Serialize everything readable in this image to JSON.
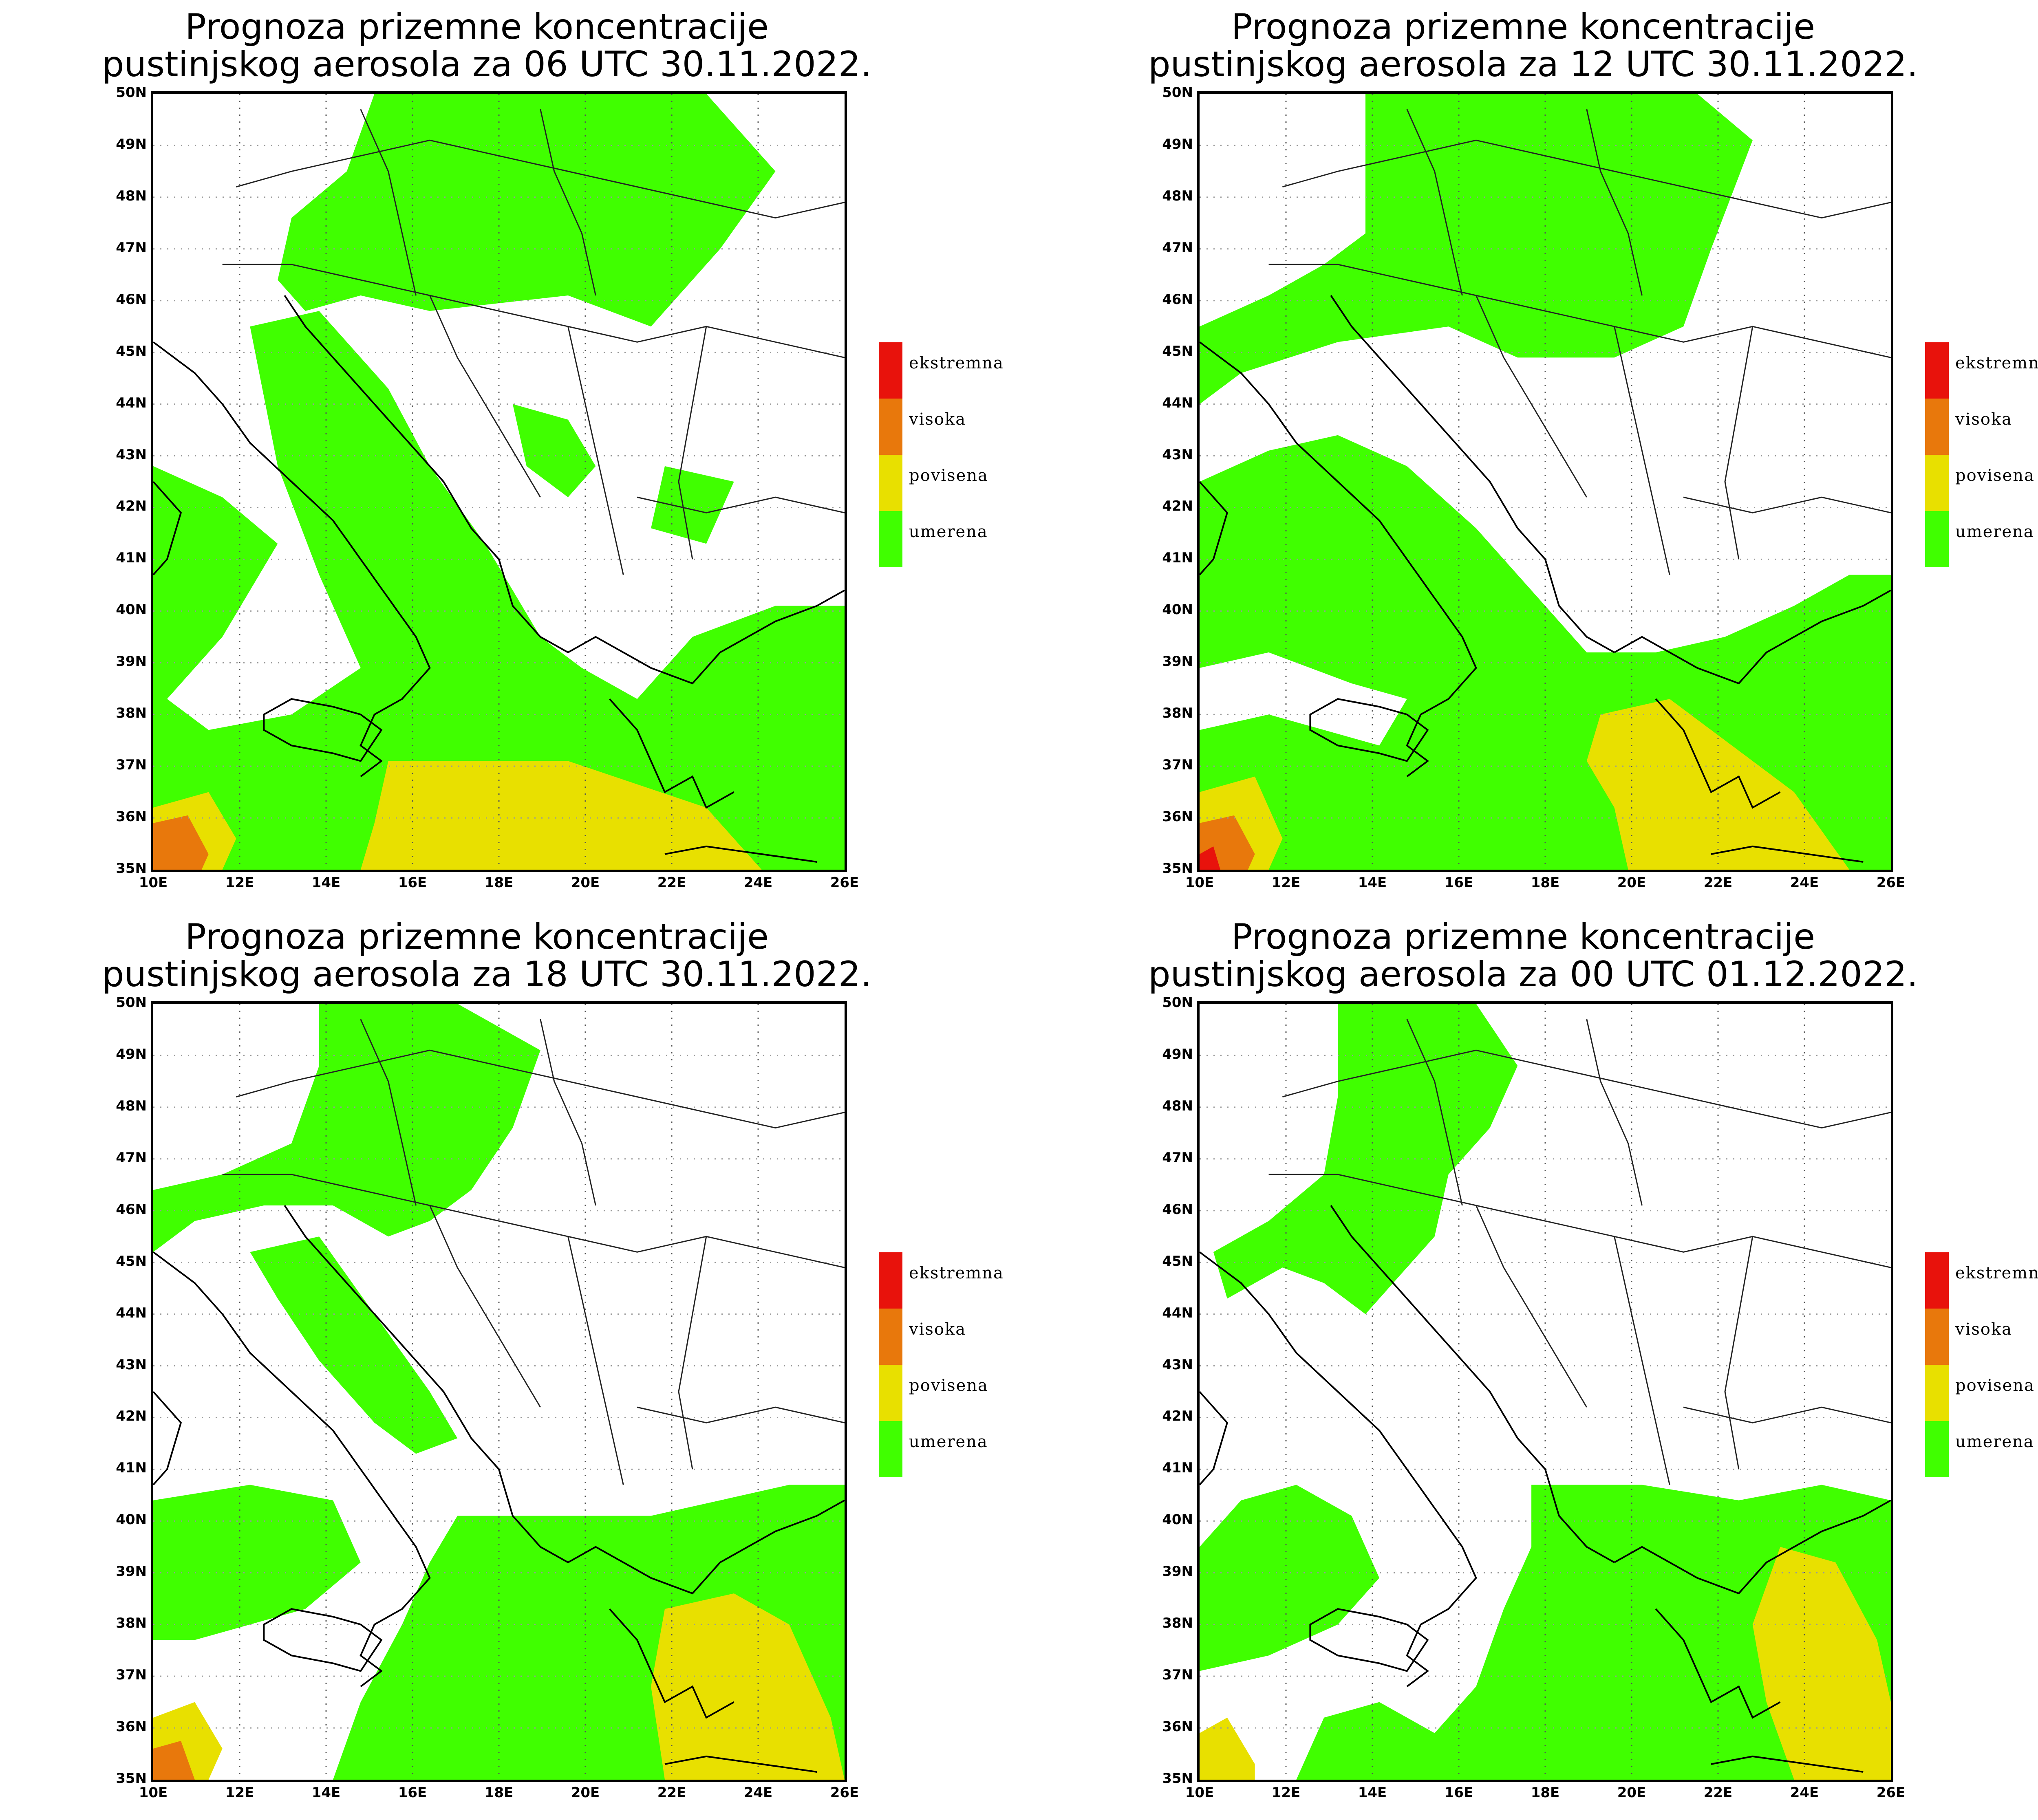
{
  "panels": [
    {
      "line1": "Prognoza prizemne koncentracije",
      "line2": "pustinjskog aerosola za 06 UTC 30.11.2022.",
      "variant": 0
    },
    {
      "line1": "Prognoza prizemne koncentracije",
      "line2": "pustinjskog aerosola za 12 UTC 30.11.2022.",
      "variant": 1
    },
    {
      "line1": "Prognoza prizemne koncentracije",
      "line2": "pustinjskog aerosola za 18 UTC 30.11.2022.",
      "variant": 2
    },
    {
      "line1": "Prognoza prizemne koncentracije",
      "line2": "pustinjskog aerosola za 00 UTC 01.12.2022.",
      "variant": 3
    }
  ],
  "lat_labels": [
    "50N",
    "49N",
    "48N",
    "47N",
    "46N",
    "45N",
    "44N",
    "43N",
    "42N",
    "41N",
    "40N",
    "39N",
    "38N",
    "37N",
    "36N",
    "35N"
  ],
  "lon_labels": [
    "10E",
    "12E",
    "14E",
    "16E",
    "18E",
    "20E",
    "22E",
    "24E",
    "26E"
  ],
  "legend": [
    {
      "label": "ekstremna",
      "color": "#e8120c"
    },
    {
      "label": "visoka",
      "color": "#e8780c"
    },
    {
      "label": "povisena",
      "color": "#e8e000"
    },
    {
      "label": "umerena",
      "color": "#40ff00"
    }
  ],
  "colors": {
    "moderate": "#40ff00",
    "elevated": "#e8e000",
    "high": "#e8780c",
    "extreme": "#e8120c",
    "border": "#000000",
    "grid": "#999999"
  }
}
